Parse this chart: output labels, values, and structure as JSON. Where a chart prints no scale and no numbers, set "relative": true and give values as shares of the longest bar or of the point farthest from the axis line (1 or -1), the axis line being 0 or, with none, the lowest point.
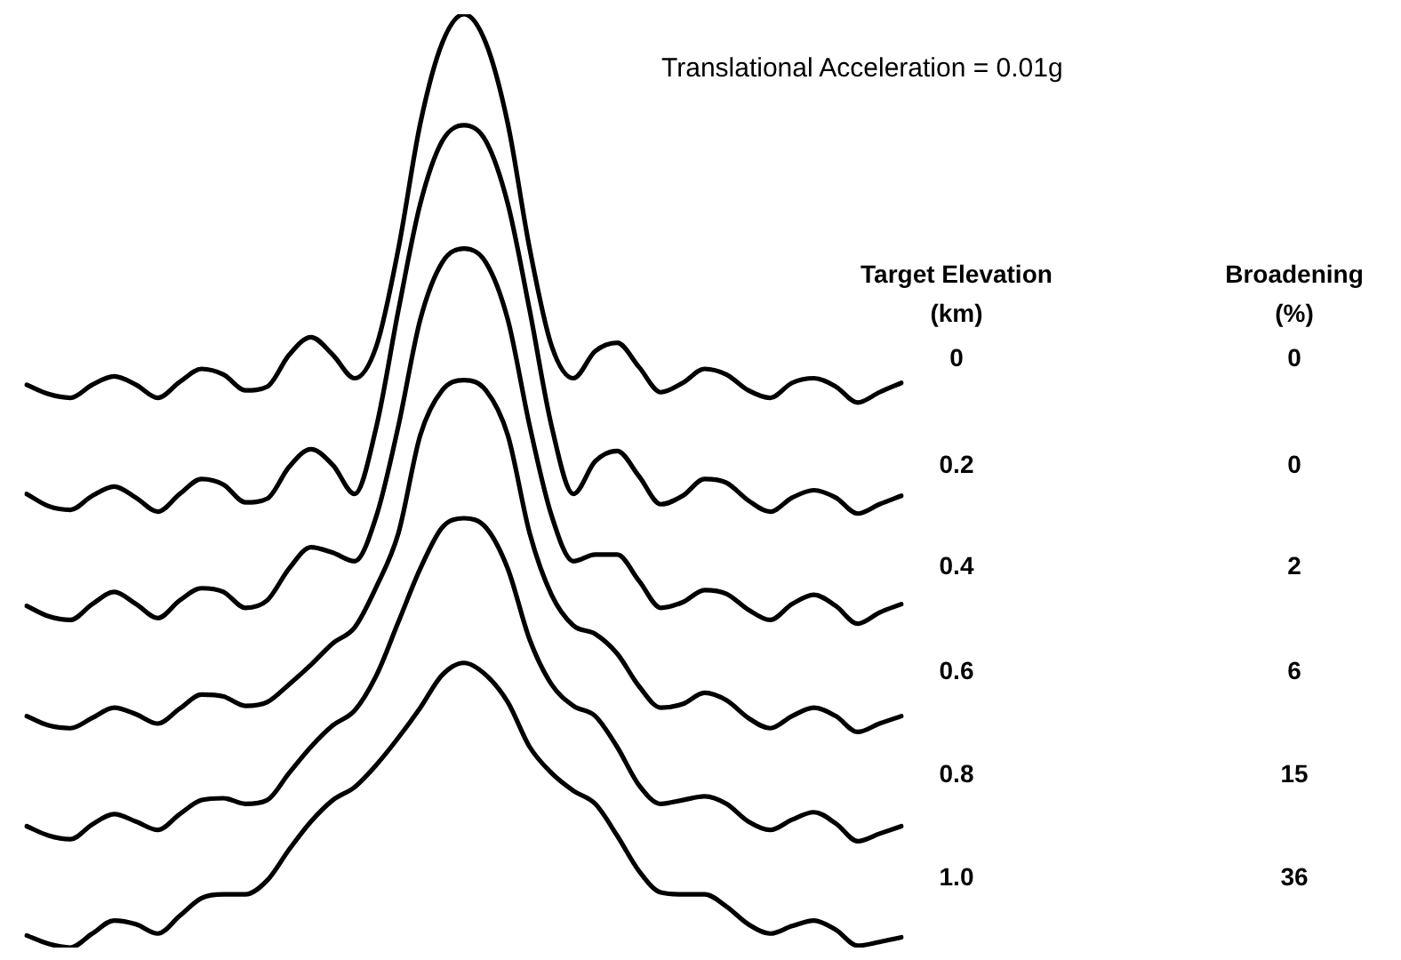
{
  "chart_data": {
    "type": "line",
    "relative": true,
    "title": "Translational Acceleration = 0.01g",
    "legend_title": "Target Elevation (km)",
    "annotations": [
      "Broadening (%)",
      "0",
      "0",
      "2",
      "6",
      "15",
      "36"
    ],
    "categories": [
      null,
      null,
      null,
      null,
      null,
      null,
      null,
      null,
      null,
      null,
      null,
      null,
      null,
      null,
      null,
      null,
      null,
      null,
      null,
      null,
      null,
      null,
      null,
      null,
      null,
      null,
      null,
      null,
      null,
      null,
      null,
      null,
      null,
      null,
      null,
      null,
      null,
      null,
      null,
      null,
      null
    ],
    "series": [
      {
        "name": "0",
        "color": "#000000",
        "values": [
          0.603,
          0.593,
          0.589,
          0.603,
          0.612,
          0.603,
          0.589,
          0.606,
          0.62,
          0.614,
          0.597,
          0.601,
          0.635,
          0.654,
          0.635,
          0.61,
          0.645,
          0.749,
          0.883,
          0.969,
          1,
          0.969,
          0.883,
          0.749,
          0.645,
          0.61,
          0.639,
          0.648,
          0.622,
          0.595,
          0.605,
          0.62,
          0.614,
          0.597,
          0.589,
          0.605,
          0.61,
          0.601,
          0.584,
          0.595,
          0.605
        ]
      },
      {
        "name": "0.2",
        "color": "#000000",
        "values": [
          0.486,
          0.473,
          0.469,
          0.484,
          0.494,
          0.482,
          0.467,
          0.486,
          0.502,
          0.496,
          0.477,
          0.481,
          0.515,
          0.534,
          0.517,
          0.486,
          0.559,
          0.683,
          0.797,
          0.864,
          0.881,
          0.864,
          0.797,
          0.683,
          0.559,
          0.486,
          0.521,
          0.532,
          0.505,
          0.475,
          0.484,
          0.502,
          0.498,
          0.479,
          0.467,
          0.482,
          0.49,
          0.482,
          0.465,
          0.475,
          0.484
        ]
      },
      {
        "name": "0.4",
        "color": "#000000",
        "values": [
          0.366,
          0.355,
          0.351,
          0.368,
          0.381,
          0.368,
          0.353,
          0.372,
          0.385,
          0.381,
          0.364,
          0.372,
          0.406,
          0.429,
          0.423,
          0.414,
          0.463,
          0.559,
          0.673,
          0.734,
          0.749,
          0.734,
          0.673,
          0.559,
          0.463,
          0.414,
          0.421,
          0.421,
          0.393,
          0.364,
          0.37,
          0.383,
          0.379,
          0.362,
          0.351,
          0.368,
          0.378,
          0.366,
          0.347,
          0.359,
          0.368
        ]
      },
      {
        "name": "0.6",
        "color": "#000000",
        "values": [
          0.248,
          0.238,
          0.235,
          0.246,
          0.257,
          0.25,
          0.24,
          0.256,
          0.271,
          0.269,
          0.259,
          0.263,
          0.282,
          0.303,
          0.326,
          0.343,
          0.387,
          0.444,
          0.549,
          0.597,
          0.608,
          0.597,
          0.549,
          0.444,
          0.378,
          0.345,
          0.336,
          0.315,
          0.28,
          0.257,
          0.261,
          0.273,
          0.265,
          0.246,
          0.235,
          0.248,
          0.257,
          0.248,
          0.231,
          0.24,
          0.248
        ]
      },
      {
        "name": "0.8",
        "color": "#000000",
        "values": [
          0.13,
          0.12,
          0.116,
          0.132,
          0.143,
          0.135,
          0.126,
          0.143,
          0.158,
          0.16,
          0.154,
          0.158,
          0.187,
          0.215,
          0.238,
          0.254,
          0.292,
          0.349,
          0.406,
          0.45,
          0.46,
          0.45,
          0.406,
          0.33,
          0.282,
          0.259,
          0.248,
          0.215,
          0.174,
          0.154,
          0.158,
          0.162,
          0.154,
          0.135,
          0.126,
          0.137,
          0.145,
          0.133,
          0.114,
          0.122,
          0.13
        ]
      },
      {
        "name": "1.0",
        "color": "#000000",
        "values": [
          0.013,
          0.004,
          0,
          0.015,
          0.029,
          0.025,
          0.015,
          0.034,
          0.053,
          0.057,
          0.057,
          0.072,
          0.105,
          0.135,
          0.158,
          0.172,
          0.196,
          0.225,
          0.257,
          0.292,
          0.305,
          0.292,
          0.263,
          0.215,
          0.187,
          0.168,
          0.154,
          0.12,
          0.082,
          0.059,
          0.057,
          0.057,
          0.044,
          0.025,
          0.015,
          0.023,
          0.029,
          0.019,
          0.002,
          0.006,
          0.011
        ]
      }
    ]
  }
}
